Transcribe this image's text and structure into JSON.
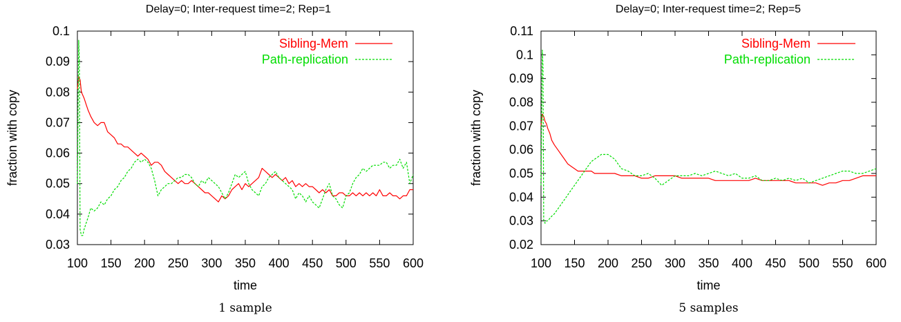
{
  "chart_data": [
    {
      "type": "line",
      "title": "Delay=0; Inter-request time=2; Rep=1",
      "xlabel": "time",
      "ylabel": "fraction with copy",
      "caption": "1 sample",
      "xlim": [
        100,
        600
      ],
      "ylim": [
        0.03,
        0.1
      ],
      "xticks": [
        "100",
        "150",
        "200",
        "250",
        "300",
        "350",
        "400",
        "450",
        "500",
        "550",
        "600"
      ],
      "yticks": [
        "0.03",
        "0.04",
        "0.05",
        "0.06",
        "0.07",
        "0.08",
        "0.09",
        "0.1"
      ],
      "legend_position": "top-right",
      "grid": false,
      "series": [
        {
          "name": "Sibling-Mem",
          "color": "#ff0000",
          "style": "solid",
          "x": [
            100,
            102,
            104,
            106,
            108,
            110,
            113,
            116,
            120,
            125,
            130,
            135,
            140,
            145,
            150,
            155,
            160,
            165,
            170,
            175,
            180,
            185,
            190,
            195,
            200,
            205,
            210,
            215,
            220,
            225,
            230,
            235,
            240,
            245,
            250,
            255,
            260,
            265,
            270,
            275,
            280,
            285,
            290,
            295,
            300,
            305,
            310,
            315,
            320,
            325,
            330,
            335,
            340,
            345,
            350,
            355,
            360,
            365,
            370,
            375,
            380,
            385,
            390,
            395,
            400,
            405,
            410,
            415,
            420,
            425,
            430,
            435,
            440,
            445,
            450,
            455,
            460,
            465,
            470,
            475,
            480,
            485,
            490,
            495,
            500,
            505,
            510,
            515,
            520,
            525,
            530,
            535,
            540,
            545,
            550,
            555,
            560,
            565,
            570,
            575,
            580,
            585,
            590,
            595,
            600
          ],
          "y": [
            0.081,
            0.085,
            0.084,
            0.08,
            0.079,
            0.078,
            0.076,
            0.074,
            0.072,
            0.07,
            0.069,
            0.07,
            0.07,
            0.067,
            0.066,
            0.065,
            0.063,
            0.063,
            0.062,
            0.062,
            0.061,
            0.06,
            0.059,
            0.06,
            0.059,
            0.058,
            0.056,
            0.057,
            0.057,
            0.056,
            0.054,
            0.053,
            0.052,
            0.051,
            0.05,
            0.051,
            0.05,
            0.05,
            0.051,
            0.05,
            0.049,
            0.048,
            0.047,
            0.047,
            0.046,
            0.045,
            0.044,
            0.046,
            0.045,
            0.046,
            0.048,
            0.049,
            0.05,
            0.048,
            0.05,
            0.049,
            0.05,
            0.051,
            0.052,
            0.055,
            0.054,
            0.053,
            0.052,
            0.053,
            0.052,
            0.051,
            0.052,
            0.05,
            0.051,
            0.049,
            0.05,
            0.049,
            0.05,
            0.049,
            0.049,
            0.048,
            0.047,
            0.048,
            0.047,
            0.048,
            0.046,
            0.046,
            0.047,
            0.047,
            0.046,
            0.046,
            0.047,
            0.046,
            0.047,
            0.046,
            0.047,
            0.046,
            0.047,
            0.046,
            0.048,
            0.046,
            0.046,
            0.047,
            0.046,
            0.046,
            0.045,
            0.046,
            0.046,
            0.048,
            0.048
          ]
        },
        {
          "name": "Path-replication",
          "color": "#00dd00",
          "style": "dashed",
          "x": [
            100,
            102,
            103,
            104,
            106,
            108,
            110,
            113,
            116,
            120,
            125,
            130,
            135,
            140,
            145,
            150,
            155,
            160,
            165,
            170,
            175,
            180,
            185,
            190,
            195,
            200,
            205,
            210,
            215,
            220,
            225,
            230,
            235,
            240,
            245,
            250,
            255,
            260,
            265,
            270,
            275,
            280,
            285,
            290,
            295,
            300,
            305,
            310,
            315,
            320,
            325,
            330,
            335,
            340,
            345,
            350,
            355,
            360,
            365,
            370,
            375,
            380,
            385,
            390,
            395,
            400,
            405,
            410,
            415,
            420,
            425,
            430,
            435,
            440,
            445,
            450,
            455,
            460,
            465,
            470,
            475,
            480,
            485,
            490,
            495,
            500,
            505,
            510,
            515,
            520,
            525,
            530,
            535,
            540,
            545,
            550,
            555,
            560,
            565,
            570,
            575,
            580,
            585,
            590,
            595,
            600
          ],
          "y": [
            0.05,
            0.097,
            0.09,
            0.035,
            0.033,
            0.033,
            0.035,
            0.037,
            0.039,
            0.042,
            0.041,
            0.042,
            0.044,
            0.043,
            0.045,
            0.046,
            0.048,
            0.049,
            0.051,
            0.052,
            0.054,
            0.055,
            0.057,
            0.058,
            0.057,
            0.058,
            0.057,
            0.055,
            0.051,
            0.046,
            0.048,
            0.049,
            0.05,
            0.05,
            0.051,
            0.052,
            0.052,
            0.053,
            0.053,
            0.052,
            0.05,
            0.049,
            0.051,
            0.05,
            0.052,
            0.051,
            0.05,
            0.049,
            0.047,
            0.045,
            0.047,
            0.05,
            0.053,
            0.052,
            0.053,
            0.054,
            0.05,
            0.048,
            0.047,
            0.046,
            0.049,
            0.05,
            0.052,
            0.053,
            0.054,
            0.052,
            0.051,
            0.05,
            0.049,
            0.048,
            0.045,
            0.047,
            0.046,
            0.044,
            0.046,
            0.044,
            0.043,
            0.042,
            0.045,
            0.048,
            0.05,
            0.046,
            0.045,
            0.043,
            0.042,
            0.046,
            0.047,
            0.05,
            0.052,
            0.053,
            0.055,
            0.054,
            0.055,
            0.056,
            0.056,
            0.056,
            0.057,
            0.057,
            0.055,
            0.056,
            0.056,
            0.058,
            0.055,
            0.057,
            0.05,
            0.053
          ]
        }
      ]
    },
    {
      "type": "line",
      "title": "Delay=0; Inter-request time=2; Rep=5",
      "xlabel": "time",
      "ylabel": "fraction with copy",
      "caption": "5 samples",
      "xlim": [
        100,
        600
      ],
      "ylim": [
        0.02,
        0.11
      ],
      "xticks": [
        "100",
        "150",
        "200",
        "250",
        "300",
        "350",
        "400",
        "450",
        "500",
        "550",
        "600"
      ],
      "yticks": [
        "0.02",
        "0.03",
        "0.04",
        "0.05",
        "0.06",
        "0.07",
        "0.08",
        "0.09",
        "0.1",
        "0.11"
      ],
      "legend_position": "top-right",
      "grid": false,
      "series": [
        {
          "name": "Sibling-Mem",
          "color": "#ff0000",
          "style": "solid",
          "x": [
            100,
            102,
            104,
            106,
            108,
            110,
            113,
            116,
            120,
            125,
            130,
            135,
            140,
            145,
            150,
            155,
            160,
            165,
            170,
            175,
            180,
            185,
            190,
            195,
            200,
            210,
            220,
            230,
            240,
            250,
            260,
            270,
            280,
            290,
            300,
            310,
            320,
            330,
            340,
            350,
            360,
            370,
            380,
            390,
            400,
            410,
            420,
            430,
            440,
            450,
            460,
            470,
            480,
            490,
            500,
            510,
            520,
            530,
            540,
            550,
            560,
            570,
            580,
            590,
            600
          ],
          "y": [
            0.07,
            0.075,
            0.074,
            0.072,
            0.071,
            0.069,
            0.067,
            0.064,
            0.062,
            0.06,
            0.058,
            0.056,
            0.054,
            0.053,
            0.052,
            0.051,
            0.051,
            0.051,
            0.051,
            0.051,
            0.05,
            0.05,
            0.05,
            0.05,
            0.05,
            0.05,
            0.049,
            0.049,
            0.049,
            0.048,
            0.048,
            0.049,
            0.049,
            0.049,
            0.049,
            0.048,
            0.048,
            0.048,
            0.048,
            0.048,
            0.047,
            0.047,
            0.047,
            0.047,
            0.047,
            0.047,
            0.048,
            0.047,
            0.047,
            0.047,
            0.047,
            0.047,
            0.046,
            0.046,
            0.046,
            0.046,
            0.045,
            0.046,
            0.046,
            0.047,
            0.047,
            0.048,
            0.049,
            0.049,
            0.049
          ]
        },
        {
          "name": "Path-replication",
          "color": "#00dd00",
          "style": "dashed",
          "x": [
            100,
            102,
            103,
            104,
            106,
            108,
            110,
            113,
            116,
            120,
            125,
            130,
            135,
            140,
            145,
            150,
            155,
            160,
            165,
            170,
            175,
            180,
            185,
            190,
            195,
            200,
            205,
            210,
            215,
            220,
            230,
            240,
            250,
            260,
            270,
            280,
            285,
            290,
            300,
            310,
            320,
            330,
            340,
            350,
            360,
            370,
            380,
            390,
            400,
            410,
            420,
            430,
            440,
            450,
            460,
            470,
            480,
            490,
            500,
            510,
            520,
            530,
            540,
            550,
            560,
            570,
            580,
            590,
            600
          ],
          "y": [
            0.045,
            0.102,
            0.095,
            0.03,
            0.029,
            0.03,
            0.03,
            0.031,
            0.032,
            0.033,
            0.035,
            0.037,
            0.039,
            0.041,
            0.043,
            0.045,
            0.047,
            0.049,
            0.051,
            0.053,
            0.055,
            0.056,
            0.057,
            0.058,
            0.058,
            0.058,
            0.057,
            0.056,
            0.054,
            0.052,
            0.051,
            0.049,
            0.049,
            0.05,
            0.048,
            0.045,
            0.046,
            0.047,
            0.049,
            0.049,
            0.049,
            0.05,
            0.049,
            0.05,
            0.051,
            0.05,
            0.049,
            0.05,
            0.048,
            0.048,
            0.049,
            0.047,
            0.047,
            0.048,
            0.047,
            0.048,
            0.047,
            0.048,
            0.046,
            0.047,
            0.048,
            0.049,
            0.05,
            0.051,
            0.051,
            0.05,
            0.05,
            0.051,
            0.052
          ]
        }
      ]
    }
  ]
}
